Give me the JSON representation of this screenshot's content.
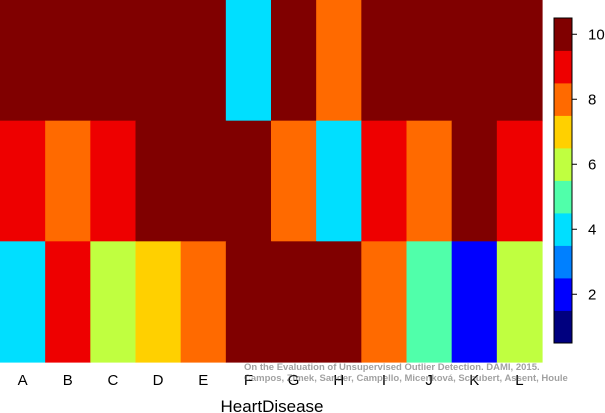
{
  "chart_data": {
    "type": "heatmap",
    "xlabel": "HeartDisease",
    "columns": [
      "A",
      "B",
      "C",
      "D",
      "E",
      "F",
      "G",
      "H",
      "I",
      "J",
      "K",
      "L"
    ],
    "rows": 3,
    "values": [
      [
        10,
        10,
        10,
        10,
        10,
        4,
        10,
        8,
        10,
        10,
        10,
        10
      ],
      [
        9,
        8,
        9,
        10,
        10,
        10,
        8,
        4,
        9,
        8,
        10,
        9
      ],
      [
        4,
        9,
        6,
        7,
        8,
        10,
        10,
        10,
        8,
        5,
        2,
        6
      ]
    ],
    "colorbar": {
      "ticks": [
        2,
        4,
        6,
        8,
        10
      ],
      "range": [
        0.5,
        10.5
      ],
      "colors": [
        "#00007F",
        "#0000FF",
        "#0080FF",
        "#00DFFF",
        "#50FFAA",
        "#C0FF40",
        "#FFD000",
        "#FF6A00",
        "#EE0000",
        "#800000"
      ]
    },
    "watermark": [
      "On the Evaluation of Unsupervised Outlier Detection. DAMI, 2015.",
      "Campos, Zimek, Sander, Campello, Micenková, Schubert, Assent, Houle"
    ]
  }
}
